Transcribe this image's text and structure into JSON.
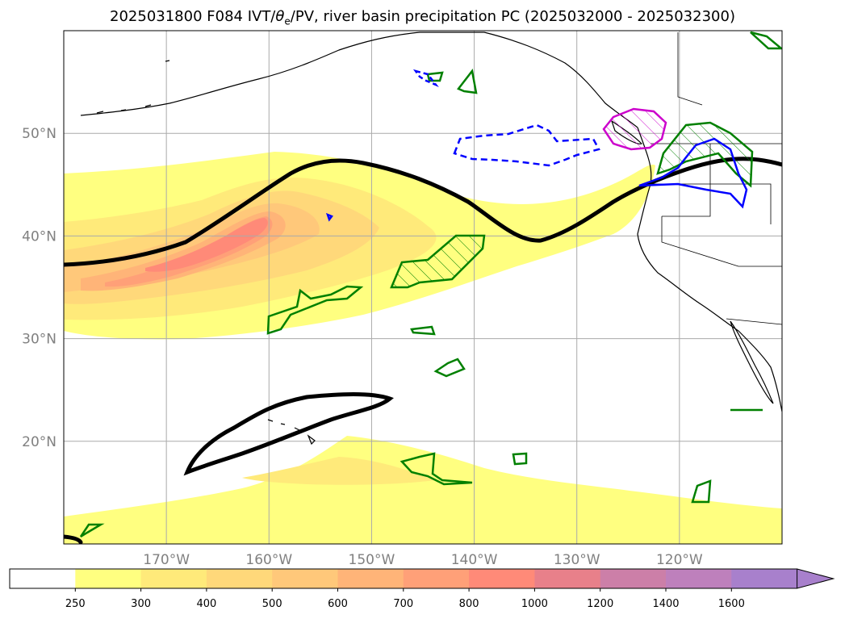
{
  "title": {
    "prefix": "2025031800 F084 IVT/",
    "theta": "θ",
    "theta_sub": "e",
    "suffix": "/PV, river basin precipitation PC (2025032000 - 2025032300)"
  },
  "map": {
    "lon_range": [
      -180,
      -110
    ],
    "lat_range": [
      10,
      60
    ],
    "lon_ticks": [
      "170°W",
      "160°W",
      "150°W",
      "140°W",
      "130°W",
      "120°W"
    ],
    "lat_ticks": [
      "20°N",
      "30°N",
      "40°N",
      "50°N"
    ],
    "grid": true
  },
  "colorbar": {
    "levels": [
      "250",
      "300",
      "400",
      "500",
      "600",
      "700",
      "800",
      "1000",
      "1200",
      "1400",
      "1600"
    ],
    "colors": [
      "#ffffff",
      "#ffff80",
      "#ffea7a",
      "#ffd87a",
      "#ffc87a",
      "#ffb478",
      "#ffa078",
      "#ff8a78",
      "#e8808a",
      "#cc7fa8",
      "#be80bc",
      "#a880cc"
    ],
    "extend": "max"
  },
  "colors": {
    "grid": "#aaaaaa",
    "tick_label": "#808080",
    "pv_contour": "#000000",
    "precip_green": "#008000",
    "precip_blue": "#0000ff",
    "precip_magenta": "#cc00cc"
  }
}
